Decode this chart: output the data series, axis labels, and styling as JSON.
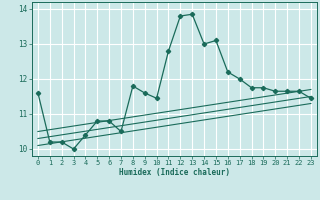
{
  "xlabel": "Humidex (Indice chaleur)",
  "ylabel": "",
  "bg_color": "#cce8e8",
  "grid_color": "#ffffff",
  "line_color": "#1a6b5a",
  "xlim": [
    -0.5,
    23.5
  ],
  "ylim": [
    9.8,
    14.2
  ],
  "xticks": [
    0,
    1,
    2,
    3,
    4,
    5,
    6,
    7,
    8,
    9,
    10,
    11,
    12,
    13,
    14,
    15,
    16,
    17,
    18,
    19,
    20,
    21,
    22,
    23
  ],
  "yticks": [
    10,
    11,
    12,
    13,
    14
  ],
  "main_x": [
    0,
    1,
    2,
    3,
    4,
    5,
    6,
    7,
    8,
    9,
    10,
    11,
    12,
    13,
    14,
    15,
    16,
    17,
    18,
    19,
    20,
    21,
    22,
    23
  ],
  "main_y": [
    11.6,
    10.2,
    10.2,
    10.0,
    10.4,
    10.8,
    10.8,
    10.5,
    11.8,
    11.6,
    11.45,
    12.8,
    13.8,
    13.85,
    13.0,
    13.1,
    12.2,
    12.0,
    11.75,
    11.75,
    11.65,
    11.65,
    11.65,
    11.45
  ],
  "trend1_x": [
    0,
    23
  ],
  "trend1_y": [
    10.1,
    11.3
  ],
  "trend2_x": [
    0,
    23
  ],
  "trend2_y": [
    10.3,
    11.5
  ],
  "trend3_x": [
    0,
    23
  ],
  "trend3_y": [
    10.5,
    11.7
  ]
}
